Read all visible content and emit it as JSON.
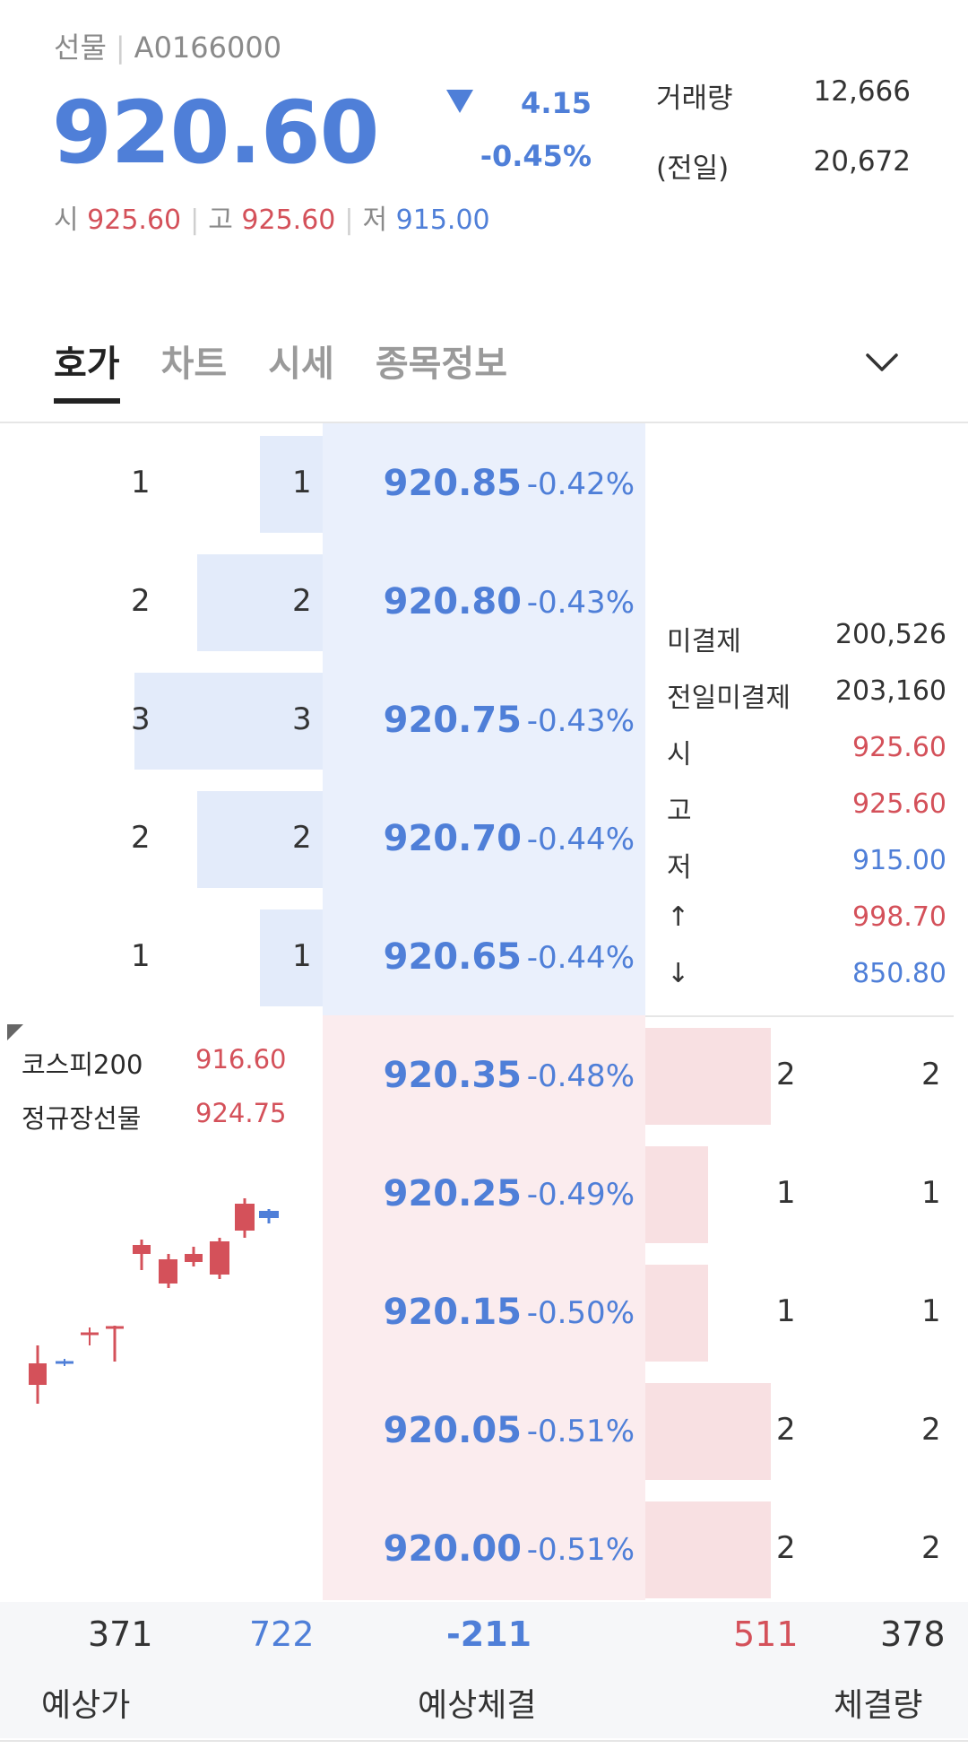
{
  "header": {
    "type": "선물",
    "code": "A0166000",
    "price": "920.60",
    "change": "4.15",
    "change_pct": "-0.45%",
    "volume_label": "거래량",
    "volume": "12,666",
    "prev_label": "(전일)",
    "prev_volume": "20,672",
    "open_label": "시",
    "open": "925.60",
    "high_label": "고",
    "high": "925.60",
    "low_label": "저",
    "low": "915.00",
    "direction_icon": "down-triangle-icon"
  },
  "tabs": [
    {
      "label": "호가",
      "active": true
    },
    {
      "label": "차트",
      "active": false
    },
    {
      "label": "시세",
      "active": false
    },
    {
      "label": "종목정보",
      "active": false
    }
  ],
  "sell_orders": [
    {
      "count": "1",
      "qty": "1",
      "price": "920.85",
      "rate": "-0.42%"
    },
    {
      "count": "2",
      "qty": "2",
      "price": "920.80",
      "rate": "-0.43%"
    },
    {
      "count": "3",
      "qty": "3",
      "price": "920.75",
      "rate": "-0.43%"
    },
    {
      "count": "2",
      "qty": "2",
      "price": "920.70",
      "rate": "-0.44%"
    },
    {
      "count": "1",
      "qty": "1",
      "price": "920.65",
      "rate": "-0.44%"
    }
  ],
  "buy_orders": [
    {
      "price": "920.35",
      "rate": "-0.48%",
      "qty": "2",
      "count": "2"
    },
    {
      "price": "920.25",
      "rate": "-0.49%",
      "qty": "1",
      "count": "1"
    },
    {
      "price": "920.15",
      "rate": "-0.50%",
      "qty": "1",
      "count": "1"
    },
    {
      "price": "920.05",
      "rate": "-0.51%",
      "qty": "2",
      "count": "2"
    },
    {
      "price": "920.00",
      "rate": "-0.51%",
      "qty": "2",
      "count": "2"
    }
  ],
  "info": [
    {
      "label": "미결제",
      "value": "200,526",
      "color": "#333333"
    },
    {
      "label": "전일미결제",
      "value": "203,160",
      "color": "#333333"
    },
    {
      "label": "시",
      "value": "925.60",
      "color": "#d4515a"
    },
    {
      "label": "고",
      "value": "925.60",
      "color": "#d4515a"
    },
    {
      "label": "저",
      "value": "915.00",
      "color": "#4f7fd8"
    },
    {
      "label": "↑",
      "value": "998.70",
      "color": "#d4515a",
      "label_color": "#d4515a"
    },
    {
      "label": "↓",
      "value": "850.80",
      "color": "#4f7fd8",
      "label_color": "#4f7fd8"
    }
  ],
  "mini": {
    "kospi_label": "코스피200",
    "kospi_value": "916.60",
    "regular_label": "정규장선물",
    "regular_value": "924.75"
  },
  "footer": {
    "sell_total": "371",
    "sell_count": "722",
    "net": "-211",
    "buy_count": "511",
    "buy_total": "378",
    "label_left": "예상가",
    "label_center": "예상체결",
    "label_right": "체결량"
  },
  "colors": {
    "accent_blue": "#4f7fd8",
    "accent_red": "#d4515a",
    "sell_bg": "#eaf0fc",
    "buy_bg": "#fbecee"
  }
}
